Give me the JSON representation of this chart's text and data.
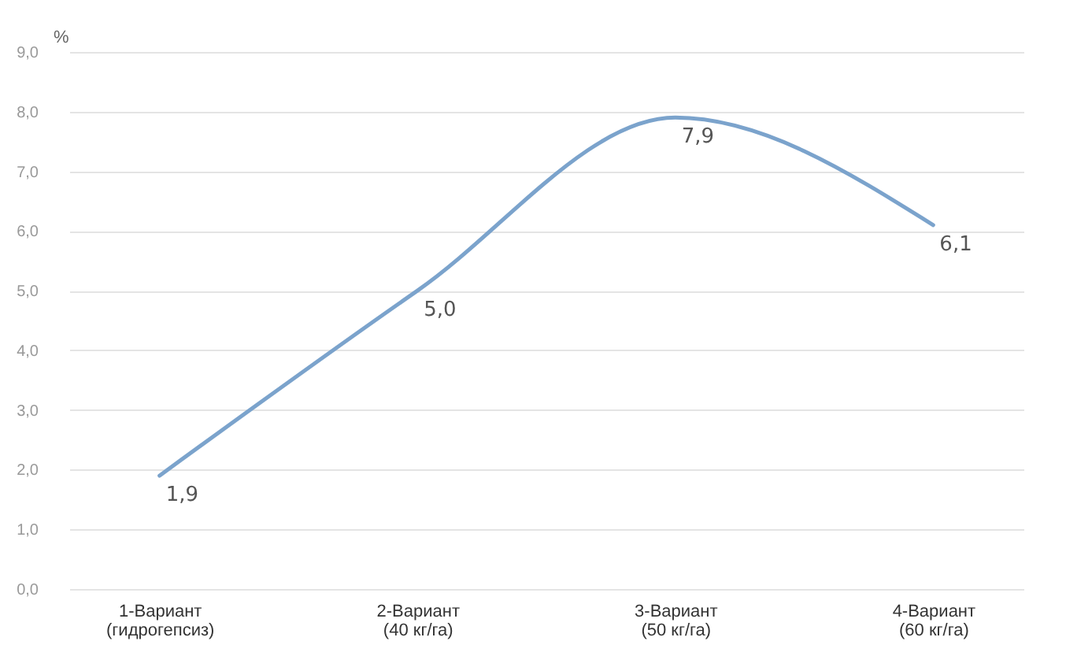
{
  "chart_data": {
    "type": "line",
    "ylabel": "%",
    "categories": [
      "1-Вариант\n(гидрогепсиз)",
      "2-Вариант\n(40 кг/га)",
      "3-Вариант\n(50 кг/га)",
      "4-Вариант\n(60 кг/га)"
    ],
    "series": [
      {
        "color": "#7ba3cc",
        "values": [
          1.9,
          5.0,
          7.9,
          6.1
        ],
        "value_labels": [
          "1,9",
          "5,0",
          "7,9",
          "6,1"
        ]
      }
    ],
    "ylim": [
      0,
      9
    ],
    "yticks": [
      {
        "value": 0,
        "label": "0,0"
      },
      {
        "value": 1,
        "label": "1,0"
      },
      {
        "value": 2,
        "label": "2,0"
      },
      {
        "value": 3,
        "label": "3,0"
      },
      {
        "value": 4,
        "label": "4,0"
      },
      {
        "value": 5,
        "label": "5,0"
      },
      {
        "value": 6,
        "label": "6,0"
      },
      {
        "value": 7,
        "label": "7,0"
      },
      {
        "value": 8,
        "label": "8,0"
      },
      {
        "value": 9,
        "label": "9,0"
      }
    ],
    "grid": "y",
    "legend": false,
    "marker": "none",
    "line_style": "solid"
  }
}
